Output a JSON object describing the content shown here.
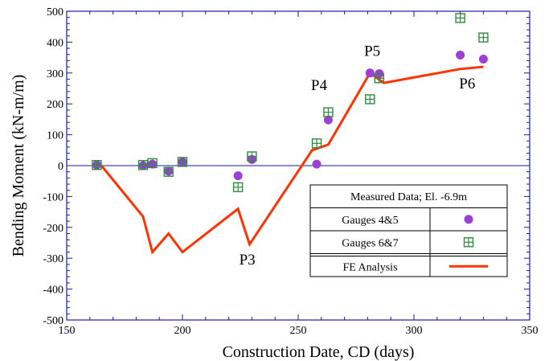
{
  "chart_data": {
    "type": "scatter",
    "xlabel": "Construction Date, CD (days)",
    "ylabel": "Bending Moment (kN-m/m)",
    "xlim": [
      150,
      350
    ],
    "ylim": [
      -500,
      500
    ],
    "x_ticks": [
      150,
      200,
      250,
      300,
      350
    ],
    "y_ticks": [
      -500,
      -400,
      -300,
      -200,
      -100,
      0,
      100,
      200,
      300,
      400,
      500
    ],
    "zero_line": true,
    "grid": false,
    "colors": {
      "axis": "#1a1aa6",
      "gauges_4_5": "#9b3fd6",
      "gauges_6_7": "#2e8b3a",
      "fe": "#ff3300"
    },
    "series": [
      {
        "name": "Gauges 4&5",
        "marker": "circle",
        "points": [
          [
            163,
            2
          ],
          [
            183,
            0
          ],
          [
            187,
            5
          ],
          [
            194,
            -18
          ],
          [
            200,
            12
          ],
          [
            224,
            -33
          ],
          [
            230,
            20
          ],
          [
            258,
            5
          ],
          [
            263,
            148
          ],
          [
            281,
            300
          ],
          [
            285,
            298
          ],
          [
            320,
            358
          ],
          [
            330,
            345
          ]
        ]
      },
      {
        "name": "Gauges 6&7",
        "marker": "square-cross",
        "points": [
          [
            163,
            2
          ],
          [
            183,
            2
          ],
          [
            187,
            8
          ],
          [
            194,
            -20
          ],
          [
            200,
            12
          ],
          [
            224,
            -70
          ],
          [
            230,
            30
          ],
          [
            258,
            72
          ],
          [
            263,
            173
          ],
          [
            281,
            215
          ],
          [
            285,
            283
          ],
          [
            320,
            478
          ],
          [
            330,
            415
          ]
        ]
      },
      {
        "name": "FE Analysis",
        "marker": "line",
        "points": [
          [
            165,
            0
          ],
          [
            183,
            -165
          ],
          [
            187,
            -280
          ],
          [
            194,
            -220
          ],
          [
            200,
            -280
          ],
          [
            224,
            -140
          ],
          [
            229,
            -255
          ],
          [
            256,
            50
          ],
          [
            263,
            68
          ],
          [
            281,
            300
          ],
          [
            287,
            268
          ],
          [
            320,
            313
          ],
          [
            330,
            320
          ]
        ]
      }
    ],
    "annotations": [
      {
        "text": "P3",
        "x": 228,
        "y": -320
      },
      {
        "text": "P4",
        "x": 259,
        "y": 245
      },
      {
        "text": "P5",
        "x": 282,
        "y": 355
      },
      {
        "text": "P6",
        "x": 323,
        "y": 250
      }
    ],
    "legend": {
      "placement": "bottom-right",
      "title": "Measured Data; El. -6.9m",
      "items": [
        {
          "label": "Gauges 4&5",
          "series": 0
        },
        {
          "label": "Gauges 6&7",
          "series": 1
        },
        {
          "label": "FE Analysis",
          "series": 2
        }
      ]
    }
  }
}
